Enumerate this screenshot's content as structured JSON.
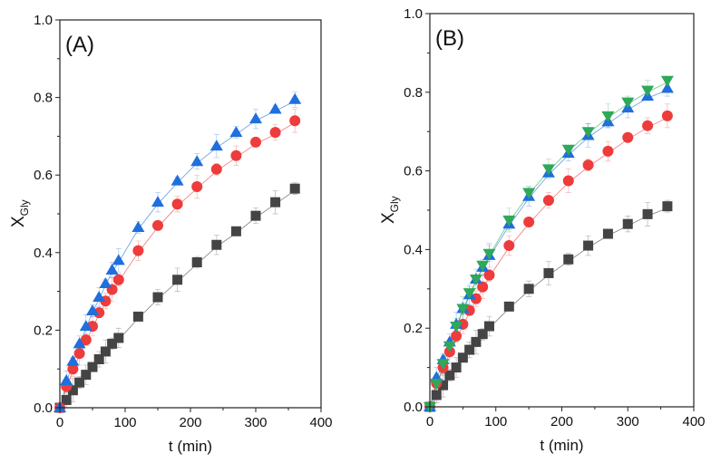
{
  "chart_data": [
    {
      "type": "scatter",
      "panel_label": "(A)",
      "xlabel": "t (min)",
      "ylabel": "X",
      "ylabel_sub": "Gly",
      "xlim": [
        0,
        400
      ],
      "ylim": [
        0,
        1.0
      ],
      "xticks": [
        "0",
        "100",
        "200",
        "300",
        "400"
      ],
      "yticks": [
        "0.0",
        "0.2",
        "0.4",
        "0.6",
        "0.8",
        "1.0"
      ],
      "grid": false,
      "x": [
        0,
        10,
        20,
        30,
        40,
        50,
        60,
        70,
        80,
        90,
        120,
        150,
        180,
        210,
        240,
        270,
        300,
        330,
        360
      ],
      "series": [
        {
          "name": "squares",
          "marker": "square",
          "color": "#444444",
          "values": [
            0,
            0.02,
            0.045,
            0.065,
            0.085,
            0.105,
            0.125,
            0.145,
            0.165,
            0.18,
            0.235,
            0.285,
            0.33,
            0.375,
            0.42,
            0.455,
            0.495,
            0.53,
            0.565
          ]
        },
        {
          "name": "circles",
          "marker": "circle",
          "color": "#ee3b3b",
          "values": [
            0,
            0.055,
            0.1,
            0.14,
            0.175,
            0.21,
            0.245,
            0.275,
            0.305,
            0.33,
            0.405,
            0.47,
            0.525,
            0.57,
            0.615,
            0.65,
            0.685,
            0.71,
            0.74
          ]
        },
        {
          "name": "triangles",
          "marker": "triangle-up",
          "color": "#1f6fdc",
          "values": [
            0,
            0.07,
            0.12,
            0.165,
            0.21,
            0.25,
            0.285,
            0.32,
            0.355,
            0.38,
            0.465,
            0.53,
            0.585,
            0.635,
            0.675,
            0.71,
            0.745,
            0.77,
            0.795
          ]
        }
      ]
    },
    {
      "type": "scatter",
      "panel_label": "(B)",
      "xlabel": "t (min)",
      "ylabel": "X",
      "ylabel_sub": "Gly",
      "xlim": [
        0,
        400
      ],
      "ylim": [
        0,
        1.0
      ],
      "xticks": [
        "0",
        "100",
        "200",
        "300",
        "400"
      ],
      "yticks": [
        "0.0",
        "0.2",
        "0.4",
        "0.6",
        "0.8",
        "1.0"
      ],
      "grid": false,
      "x": [
        0,
        10,
        20,
        30,
        40,
        50,
        60,
        70,
        80,
        90,
        120,
        150,
        180,
        210,
        240,
        270,
        300,
        330,
        360
      ],
      "series": [
        {
          "name": "squares",
          "marker": "square",
          "color": "#444444",
          "values": [
            0,
            0.03,
            0.055,
            0.08,
            0.1,
            0.125,
            0.145,
            0.165,
            0.185,
            0.205,
            0.255,
            0.3,
            0.34,
            0.375,
            0.41,
            0.44,
            0.465,
            0.49,
            0.51
          ]
        },
        {
          "name": "circles",
          "marker": "circle",
          "color": "#ee3b3b",
          "values": [
            0,
            0.06,
            0.1,
            0.14,
            0.18,
            0.21,
            0.245,
            0.275,
            0.305,
            0.335,
            0.41,
            0.47,
            0.525,
            0.575,
            0.615,
            0.65,
            0.685,
            0.715,
            0.74
          ]
        },
        {
          "name": "triangles",
          "marker": "triangle-up",
          "color": "#1f6fdc",
          "values": [
            0,
            0.075,
            0.12,
            0.165,
            0.21,
            0.25,
            0.285,
            0.325,
            0.355,
            0.385,
            0.465,
            0.535,
            0.595,
            0.645,
            0.69,
            0.725,
            0.76,
            0.79,
            0.81
          ]
        },
        {
          "name": "inverted-triangles",
          "marker": "triangle-down",
          "color": "#2fa85a",
          "values": [
            0,
            0.06,
            0.11,
            0.155,
            0.205,
            0.25,
            0.29,
            0.325,
            0.36,
            0.39,
            0.475,
            0.545,
            0.605,
            0.655,
            0.7,
            0.74,
            0.775,
            0.805,
            0.83
          ]
        }
      ]
    }
  ]
}
